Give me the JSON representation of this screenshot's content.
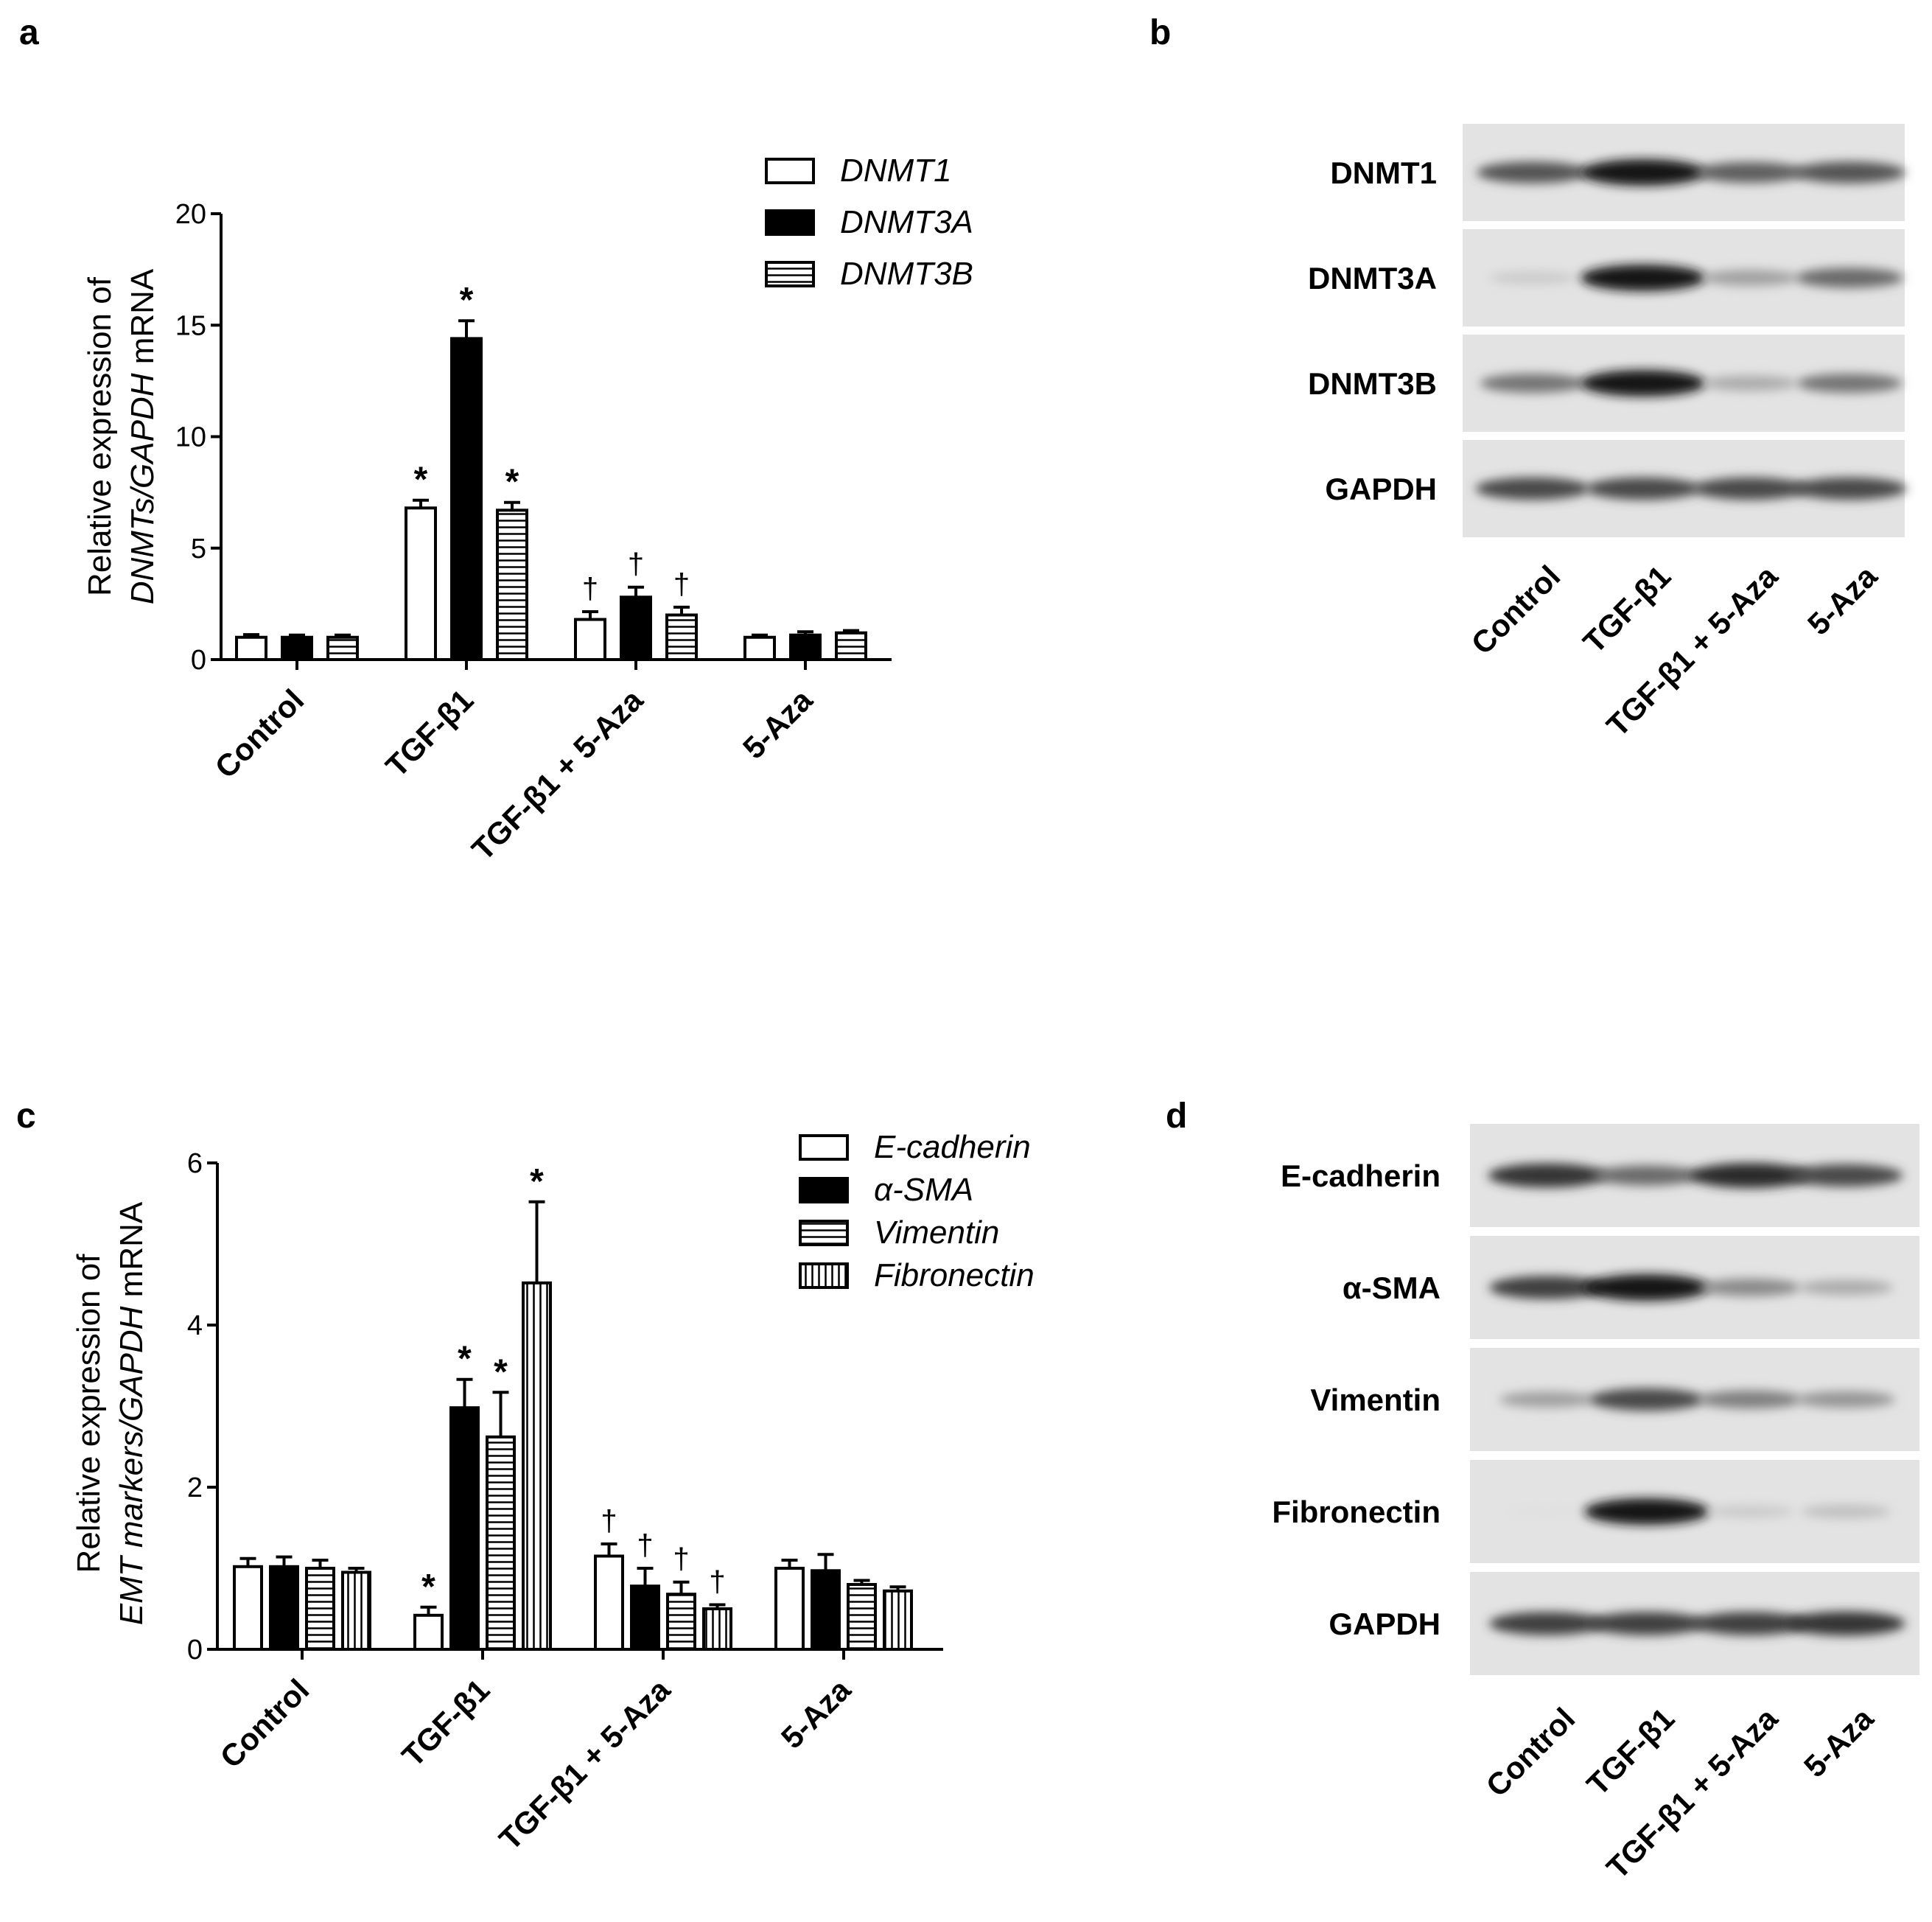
{
  "panel_letters": {
    "a": "a",
    "b": "b",
    "c": "c",
    "d": "d"
  },
  "chart_data": [
    {
      "panel": "a",
      "type": "bar",
      "ylabel_lines": [
        [
          {
            "t": "Relative expression of",
            "i": false
          }
        ],
        [
          {
            "t": "DNMTs/GAPDH",
            "i": true
          },
          {
            "t": " mRNA",
            "i": false
          }
        ]
      ],
      "ylim": [
        0,
        20
      ],
      "yticks": [
        0,
        5,
        10,
        15,
        20
      ],
      "categories": [
        "Control",
        "TGF-β1",
        "TGF-β1 + 5-Aza",
        "5-Aza"
      ],
      "series": [
        {
          "name": "DNMT1",
          "pattern": "open",
          "values": [
            1.0,
            6.8,
            1.8,
            1.0
          ],
          "errors": [
            0.12,
            0.35,
            0.35,
            0.1
          ],
          "marks": [
            "",
            "*",
            "†",
            ""
          ]
        },
        {
          "name": "DNMT3A",
          "pattern": "solid",
          "values": [
            1.0,
            14.4,
            2.8,
            1.1
          ],
          "errors": [
            0.1,
            0.8,
            0.45,
            0.15
          ],
          "marks": [
            "",
            "*",
            "†",
            ""
          ]
        },
        {
          "name": "DNMT3B",
          "pattern": "hstripe",
          "values": [
            1.0,
            6.7,
            2.0,
            1.2
          ],
          "errors": [
            0.1,
            0.35,
            0.35,
            0.1
          ],
          "marks": [
            "",
            "*",
            "†",
            ""
          ]
        }
      ],
      "legend_position": "top-right"
    },
    {
      "panel": "c",
      "type": "bar",
      "ylabel_lines": [
        [
          {
            "t": "Relative expression of",
            "i": false
          }
        ],
        [
          {
            "t": "EMT markers/GAPDH",
            "i": true
          },
          {
            "t": " mRNA",
            "i": false
          }
        ]
      ],
      "ylim": [
        0,
        6
      ],
      "yticks": [
        0,
        2,
        4,
        6
      ],
      "categories": [
        "Control",
        "TGF-β1",
        "TGF-β1 + 5-Aza",
        "5-Aza"
      ],
      "series": [
        {
          "name": "E-cadherin",
          "pattern": "open",
          "values": [
            1.02,
            0.42,
            1.15,
            1.0
          ],
          "errors": [
            0.1,
            0.1,
            0.15,
            0.1
          ],
          "marks": [
            "",
            "*",
            "†",
            ""
          ]
        },
        {
          "name": "α-SMA",
          "pattern": "solid",
          "values": [
            1.02,
            2.98,
            0.78,
            0.97
          ],
          "errors": [
            0.12,
            0.35,
            0.22,
            0.2
          ],
          "marks": [
            "",
            "*",
            "†",
            ""
          ]
        },
        {
          "name": "Vimentin",
          "pattern": "hstripe",
          "values": [
            1.0,
            2.62,
            0.68,
            0.8
          ],
          "errors": [
            0.1,
            0.55,
            0.15,
            0.05
          ],
          "marks": [
            "",
            "*",
            "†",
            ""
          ]
        },
        {
          "name": "Fibronectin",
          "pattern": "vstripe",
          "values": [
            0.95,
            4.52,
            0.5,
            0.72
          ],
          "errors": [
            0.05,
            1.0,
            0.05,
            0.05
          ],
          "marks": [
            "",
            "*",
            "†",
            ""
          ]
        }
      ],
      "legend_position": "top-right"
    }
  ],
  "blots": [
    {
      "panel": "b",
      "rows": [
        {
          "label": "DNMT1",
          "intensities": [
            0.7,
            1.0,
            0.65,
            0.7
          ]
        },
        {
          "label": "DNMT3A",
          "intensities": [
            0.15,
            1.0,
            0.35,
            0.6
          ]
        },
        {
          "label": "DNMT3B",
          "intensities": [
            0.55,
            1.0,
            0.3,
            0.55
          ]
        },
        {
          "label": "GAPDH",
          "intensities": [
            0.75,
            0.75,
            0.75,
            0.75
          ]
        }
      ],
      "lanes": [
        "Control",
        "TGF-β1",
        "TGF-β1 + 5-Aza",
        "5-Aza"
      ]
    },
    {
      "panel": "d",
      "rows": [
        {
          "label": "E-cadherin",
          "intensities": [
            0.85,
            0.6,
            0.9,
            0.75
          ]
        },
        {
          "label": "α-SMA",
          "intensities": [
            0.8,
            1.0,
            0.45,
            0.3
          ]
        },
        {
          "label": "Vimentin",
          "intensities": [
            0.35,
            0.75,
            0.5,
            0.4
          ]
        },
        {
          "label": "Fibronectin",
          "intensities": [
            0.05,
            1.0,
            0.15,
            0.2
          ]
        },
        {
          "label": "GAPDH",
          "intensities": [
            0.8,
            0.8,
            0.8,
            0.85
          ]
        }
      ],
      "lanes": [
        "Control",
        "TGF-β1",
        "TGF-β1 + 5-Aza",
        "5-Aza"
      ]
    }
  ]
}
